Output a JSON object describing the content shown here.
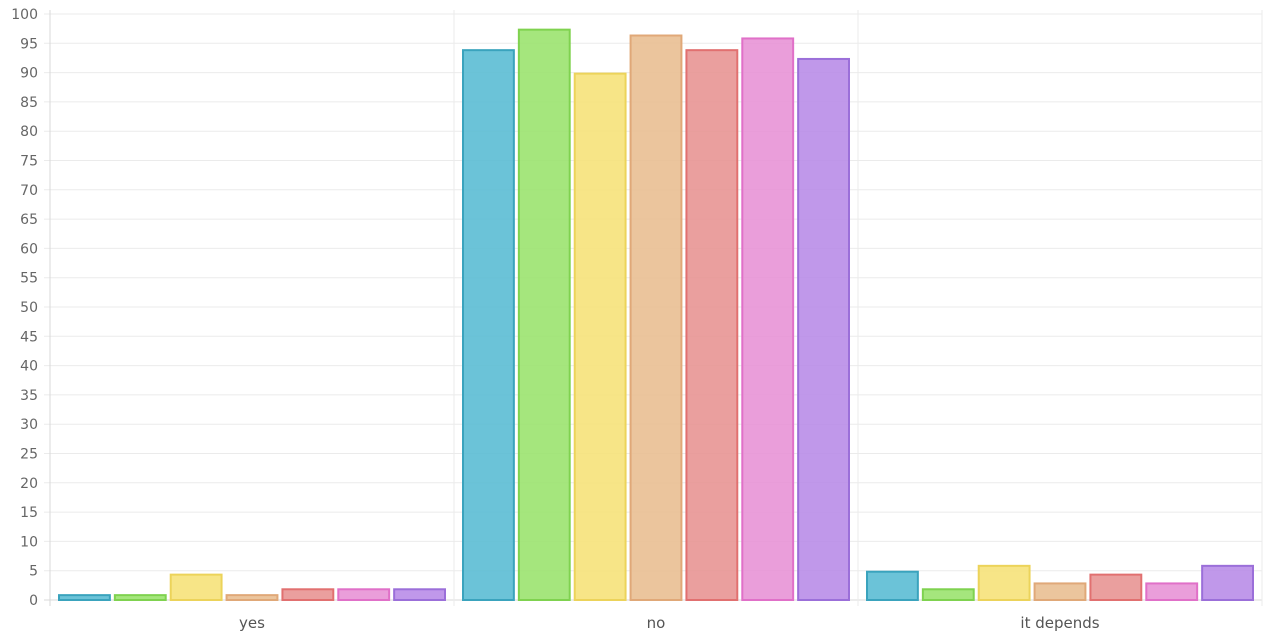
{
  "chart_data": {
    "type": "bar",
    "categories": [
      "yes",
      "no",
      "it depends"
    ],
    "series": [
      {
        "values": [
          1,
          94,
          5
        ],
        "color": "#5bbcd4",
        "border": "#3aa3bd"
      },
      {
        "values": [
          1,
          97.5,
          2
        ],
        "color": "#9be36f",
        "border": "#7fd24f"
      },
      {
        "values": [
          4.5,
          90,
          6
        ],
        "color": "#f6e27a",
        "border": "#ecd35a"
      },
      {
        "values": [
          1,
          96.5,
          3
        ],
        "color": "#e9bf92",
        "border": "#e0a878"
      },
      {
        "values": [
          2,
          94,
          4.5
        ],
        "color": "#e89593",
        "border": "#e17070"
      },
      {
        "values": [
          2,
          96,
          3
        ],
        "color": "#e894d6",
        "border": "#e070c8"
      },
      {
        "values": [
          2,
          92.5,
          6
        ],
        "color": "#b98de8",
        "border": "#9b6fd9"
      }
    ],
    "ylim": [
      0,
      100
    ],
    "yticks": [
      0,
      5,
      10,
      15,
      20,
      25,
      30,
      35,
      40,
      45,
      50,
      55,
      60,
      65,
      70,
      75,
      80,
      85,
      90,
      95,
      100
    ],
    "grid": true,
    "xlabel": "",
    "ylabel": ""
  }
}
